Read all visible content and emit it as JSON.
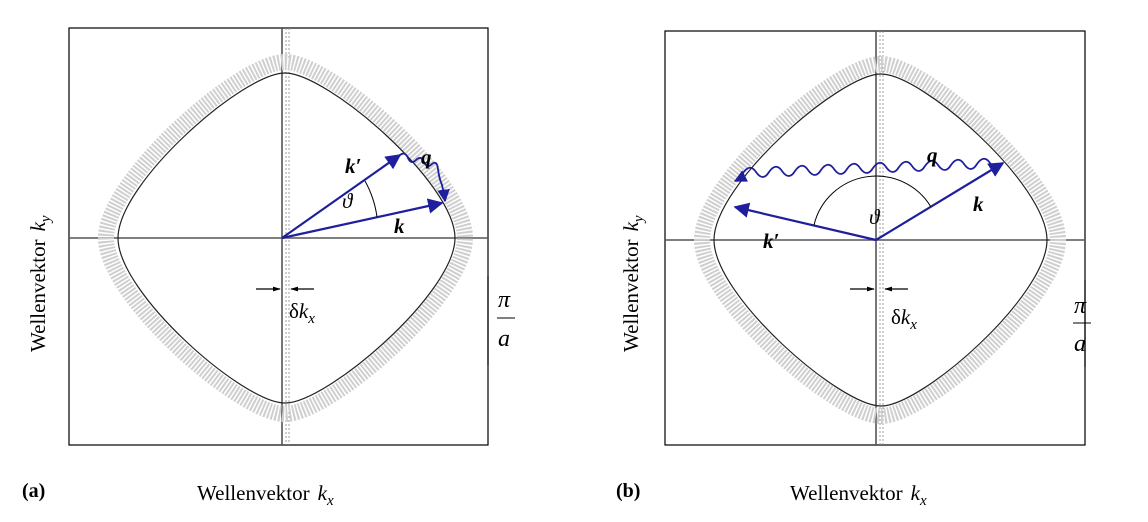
{
  "colors": {
    "vector": "#1f1f9e",
    "line": "#000000",
    "shell": "#c9c9c9",
    "grid": "#555555"
  },
  "panels": [
    {
      "id": "a",
      "tag": "(a)",
      "xlabel_text": "Wellenvektor",
      "xlabel_sym": "k",
      "xlabel_sub": "x",
      "ylabel_text": "Wellenvektor",
      "ylabel_sym": "k",
      "ylabel_sub": "y",
      "k_prime": "k′",
      "k": "k",
      "q": "q",
      "angle": "ϑ",
      "delta": "δ",
      "delta_sym": "k",
      "delta_sub": "x",
      "pi": "π",
      "a": "a"
    },
    {
      "id": "b",
      "tag": "(b)",
      "xlabel_text": "Wellenvektor",
      "xlabel_sym": "k",
      "xlabel_sub": "x",
      "ylabel_text": "Wellenvektor",
      "ylabel_sym": "k",
      "ylabel_sub": "y",
      "k_prime": "k′",
      "k": "k",
      "q": "q",
      "angle": "ϑ",
      "delta": "δ",
      "delta_sym": "k",
      "delta_sub": "x",
      "pi": "π",
      "a": "a"
    }
  ]
}
